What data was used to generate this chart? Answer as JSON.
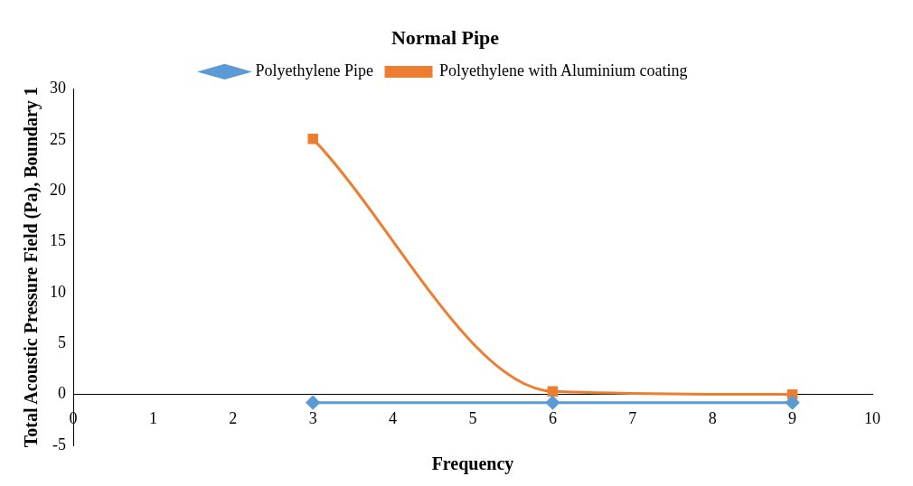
{
  "chart_data": {
    "type": "line",
    "title": "Normal Pipe",
    "xlabel": "Frequency",
    "ylabel": "Total Acoustic Pressure Field (Pa), Boundary 1",
    "xlim": [
      0,
      10
    ],
    "xticks": [
      0,
      1,
      2,
      3,
      4,
      5,
      6,
      7,
      8,
      9,
      10
    ],
    "ylim": [
      -5,
      30
    ],
    "yticks": [
      -5,
      0,
      5,
      10,
      15,
      20,
      25,
      30
    ],
    "grid": false,
    "legend": "top",
    "series": [
      {
        "name": "Polyethylene Pipe",
        "color": "#5b9bd5",
        "marker": "diamond",
        "x": [
          3,
          6,
          9
        ],
        "values": [
          -0.8,
          -0.8,
          -0.8
        ]
      },
      {
        "name": "Polyethylene with Aluminium coating",
        "color": "#ed7d31",
        "marker": "square",
        "x": [
          3,
          6,
          9
        ],
        "values": [
          25.1,
          0.3,
          0
        ]
      }
    ]
  }
}
